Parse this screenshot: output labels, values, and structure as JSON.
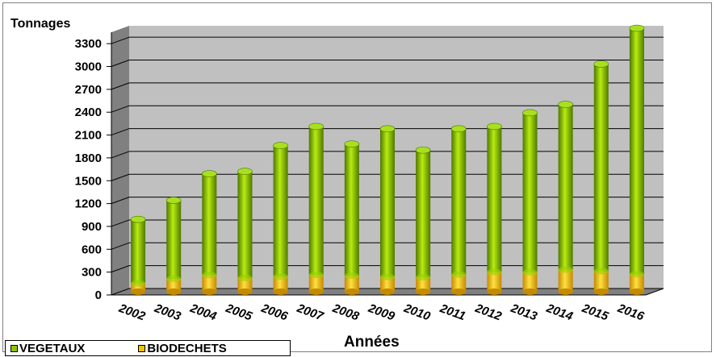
{
  "chart_data": {
    "type": "bar",
    "stacked": true,
    "ylabel": "Tonnages",
    "xlabel": "Années",
    "categories": [
      "2002",
      "2003",
      "2004",
      "2005",
      "2006",
      "2007",
      "2008",
      "2009",
      "2010",
      "2011",
      "2012",
      "2013",
      "2014",
      "2015",
      "2016"
    ],
    "ylim": [
      0,
      3450
    ],
    "yticks": [
      0,
      300,
      600,
      900,
      1200,
      1500,
      1800,
      2100,
      2400,
      2700,
      3000,
      3300
    ],
    "grid": true,
    "legend_position": "bottom-left",
    "series": [
      {
        "name": "BIODECHETS",
        "color": "#f5c400",
        "values": [
          110,
          170,
          220,
          180,
          200,
          220,
          210,
          195,
          190,
          225,
          260,
          255,
          290,
          270,
          230
        ]
      },
      {
        "name": "VEGETAUX",
        "color": "#8fc400",
        "values": [
          840,
          1030,
          1330,
          1400,
          1720,
          1950,
          1730,
          1945,
          1670,
          1915,
          1910,
          2095,
          2170,
          2720,
          3230
        ]
      }
    ],
    "colors": {
      "plot_wall": "#c0c0c0",
      "plot_floor": "#808080",
      "grid": "#000000"
    }
  }
}
